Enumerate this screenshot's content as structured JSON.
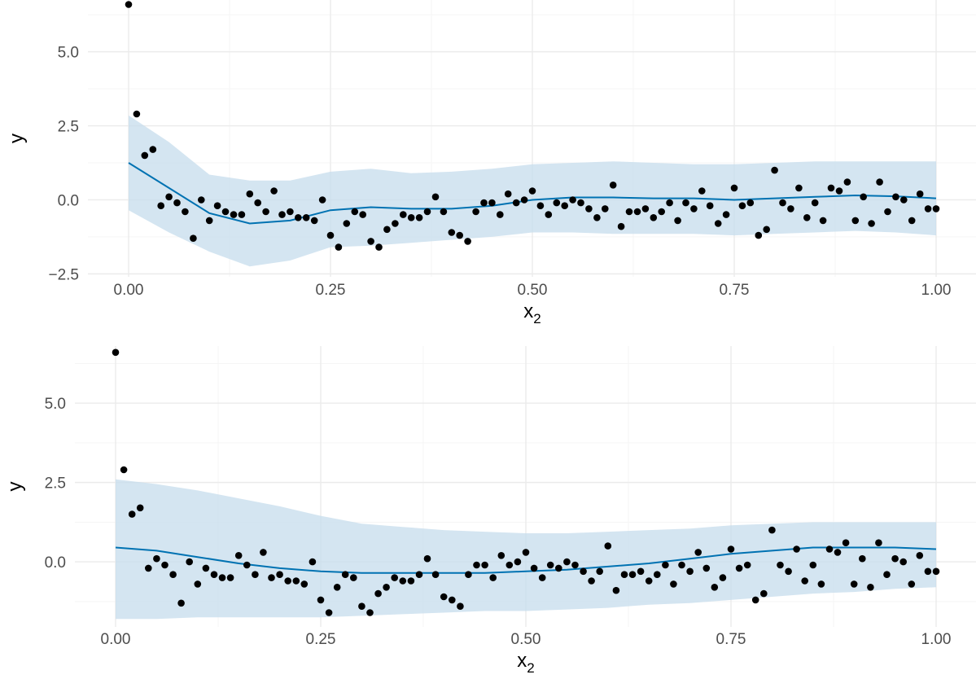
{
  "colors": {
    "line": "#0072B2",
    "band": "#c6dcec",
    "points": "#000000",
    "grid_major": "#ebebeb",
    "grid_minor": "#f5f5f5",
    "tick_text": "#4d4d4d"
  },
  "points": {
    "x": [
      0.0,
      0.01,
      0.02,
      0.03,
      0.04,
      0.05,
      0.06,
      0.07,
      0.08,
      0.09,
      0.1,
      0.11,
      0.12,
      0.13,
      0.14,
      0.15,
      0.16,
      0.17,
      0.18,
      0.19,
      0.2,
      0.21,
      0.22,
      0.23,
      0.24,
      0.25,
      0.26,
      0.27,
      0.28,
      0.29,
      0.3,
      0.31,
      0.32,
      0.33,
      0.34,
      0.35,
      0.36,
      0.37,
      0.38,
      0.39,
      0.4,
      0.41,
      0.42,
      0.43,
      0.44,
      0.45,
      0.46,
      0.47,
      0.48,
      0.49,
      0.5,
      0.51,
      0.52,
      0.53,
      0.54,
      0.55,
      0.56,
      0.57,
      0.58,
      0.59,
      0.6,
      0.61,
      0.62,
      0.63,
      0.64,
      0.65,
      0.66,
      0.67,
      0.68,
      0.69,
      0.7,
      0.71,
      0.72,
      0.73,
      0.74,
      0.75,
      0.76,
      0.77,
      0.78,
      0.79,
      0.8,
      0.81,
      0.82,
      0.83,
      0.84,
      0.85,
      0.86,
      0.87,
      0.88,
      0.89,
      0.9,
      0.91,
      0.92,
      0.93,
      0.94,
      0.95,
      0.96,
      0.97,
      0.98,
      0.99,
      1.0
    ],
    "y": [
      6.6,
      2.9,
      1.5,
      1.7,
      -0.2,
      0.1,
      -0.1,
      -0.4,
      -1.3,
      0.0,
      -0.7,
      -0.2,
      -0.4,
      -0.5,
      -0.5,
      0.2,
      -0.1,
      -0.4,
      0.3,
      -0.5,
      -0.4,
      -0.6,
      -0.6,
      -0.7,
      0.0,
      -1.2,
      -1.6,
      -0.8,
      -0.4,
      -0.5,
      -1.4,
      -1.6,
      -1.0,
      -0.8,
      -0.5,
      -0.6,
      -0.6,
      -0.4,
      0.1,
      -0.4,
      -1.1,
      -1.2,
      -1.4,
      -0.4,
      -0.1,
      -0.1,
      -0.5,
      0.2,
      -0.1,
      0.0,
      0.3,
      -0.2,
      -0.5,
      -0.1,
      -0.2,
      0.0,
      -0.1,
      -0.3,
      -0.6,
      -0.3,
      0.5,
      -0.9,
      -0.4,
      -0.4,
      -0.3,
      -0.6,
      -0.4,
      -0.1,
      -0.7,
      -0.1,
      -0.3,
      0.3,
      -0.2,
      -0.8,
      -0.5,
      0.4,
      -0.2,
      -0.1,
      -1.2,
      -1.0,
      1.0,
      -0.1,
      -0.3,
      0.4,
      -0.6,
      -0.1,
      -0.7,
      0.4,
      0.3,
      0.6,
      -0.7,
      0.1,
      -0.8,
      0.6,
      -0.4,
      0.1,
      0.0,
      -0.7,
      0.2,
      -0.3,
      -0.3
    ]
  },
  "chart_data": [
    {
      "type": "line",
      "xlabel": "x",
      "xlabel_sub": "2",
      "ylabel": "y",
      "xlim": [
        0,
        1
      ],
      "ylim": [
        -2.6,
        6.75
      ],
      "xticks": [
        0,
        0.25,
        0.5,
        0.75,
        1
      ],
      "xtick_labels": [
        "0.00",
        "0.25",
        "0.50",
        "0.75",
        "1.00"
      ],
      "yticks": [
        -2.5,
        0,
        2.5,
        5
      ],
      "ytick_labels": [
        "−2.5",
        "0.0",
        "2.5",
        "5.0"
      ],
      "grid": true,
      "points": "shared scatter: points.x / points.y",
      "fit": {
        "x": [
          0.0,
          0.05,
          0.1,
          0.15,
          0.2,
          0.25,
          0.3,
          0.35,
          0.4,
          0.45,
          0.5,
          0.55,
          0.6,
          0.65,
          0.7,
          0.75,
          0.8,
          0.85,
          0.9,
          0.95,
          1.0
        ],
        "y": [
          1.25,
          0.4,
          -0.45,
          -0.8,
          -0.7,
          -0.35,
          -0.25,
          -0.3,
          -0.3,
          -0.2,
          0.0,
          0.08,
          0.08,
          0.05,
          0.05,
          0.0,
          0.05,
          0.1,
          0.15,
          0.12,
          0.05
        ],
        "lower": [
          -0.35,
          -1.1,
          -1.75,
          -2.25,
          -2.05,
          -1.6,
          -1.55,
          -1.45,
          -1.35,
          -1.25,
          -1.1,
          -1.1,
          -1.15,
          -1.15,
          -1.15,
          -1.2,
          -1.15,
          -1.1,
          -1.05,
          -1.1,
          -1.2
        ],
        "upper": [
          2.85,
          1.95,
          0.85,
          0.65,
          0.65,
          0.95,
          1.05,
          0.9,
          0.95,
          1.05,
          1.2,
          1.25,
          1.3,
          1.25,
          1.2,
          1.2,
          1.25,
          1.3,
          1.3,
          1.3,
          1.3
        ]
      }
    },
    {
      "type": "line",
      "xlabel": "x",
      "xlabel_sub": "2",
      "ylabel": "y",
      "xlim": [
        0,
        1
      ],
      "ylim": [
        -2.05,
        6.8
      ],
      "xticks": [
        0,
        0.25,
        0.5,
        0.75,
        1
      ],
      "xtick_labels": [
        "0.00",
        "0.25",
        "0.50",
        "0.75",
        "1.00"
      ],
      "yticks": [
        0,
        2.5,
        5
      ],
      "ytick_labels": [
        "0.0",
        "2.5",
        "5.0"
      ],
      "grid": true,
      "points": "shared scatter: points.x / points.y",
      "fit": {
        "x": [
          0.0,
          0.05,
          0.1,
          0.15,
          0.2,
          0.25,
          0.3,
          0.35,
          0.4,
          0.45,
          0.5,
          0.55,
          0.6,
          0.65,
          0.7,
          0.75,
          0.8,
          0.85,
          0.9,
          0.95,
          1.0
        ],
        "y": [
          0.45,
          0.35,
          0.15,
          -0.05,
          -0.2,
          -0.3,
          -0.35,
          -0.35,
          -0.35,
          -0.35,
          -0.3,
          -0.25,
          -0.15,
          -0.05,
          0.1,
          0.25,
          0.35,
          0.45,
          0.45,
          0.45,
          0.4
        ],
        "lower": [
          -1.8,
          -1.8,
          -1.75,
          -1.75,
          -1.75,
          -1.75,
          -1.7,
          -1.65,
          -1.6,
          -1.55,
          -1.55,
          -1.5,
          -1.45,
          -1.35,
          -1.3,
          -1.2,
          -1.1,
          -1.0,
          -0.95,
          -0.85,
          -0.8
        ],
        "upper": [
          2.6,
          2.45,
          2.25,
          2.0,
          1.75,
          1.45,
          1.2,
          1.1,
          1.0,
          0.95,
          0.9,
          0.9,
          0.95,
          1.0,
          1.05,
          1.15,
          1.2,
          1.25,
          1.25,
          1.25,
          1.25
        ]
      }
    }
  ]
}
